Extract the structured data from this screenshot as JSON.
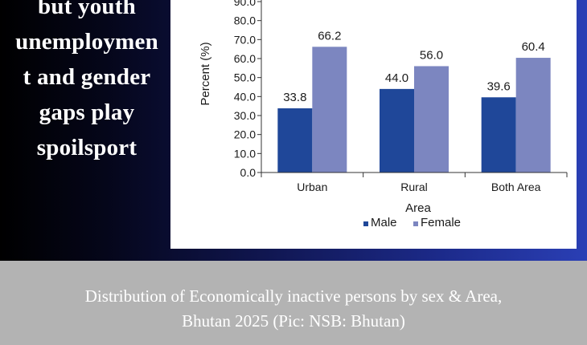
{
  "headline": {
    "lines": [
      "but youth",
      "unemploymen",
      "t and gender",
      "gaps play",
      "spoilsport"
    ]
  },
  "caption": {
    "line1": "Distribution of Economically inactive persons by sex & Area,",
    "line2": "Bhutan 2025 (Pic: NSB: Bhutan)"
  },
  "chart_data": {
    "type": "bar",
    "categories": [
      "Urban",
      "Rural",
      "Both Area"
    ],
    "series": [
      {
        "name": "Male",
        "values": [
          33.8,
          44.0,
          39.6
        ],
        "color": "#1f4799"
      },
      {
        "name": "Female",
        "values": [
          66.2,
          56.0,
          60.4
        ],
        "color": "#7c86c0"
      }
    ],
    "ylim": [
      0,
      90
    ],
    "yticks": [
      "0.0",
      "10.0",
      "20.0",
      "30.0",
      "40.0",
      "50.0",
      "60.0",
      "70.0",
      "80.0",
      "90.0"
    ],
    "value_labels": [
      [
        "33.8",
        "44.0",
        "39.6"
      ],
      [
        "66.2",
        "56.0",
        "60.4"
      ]
    ],
    "xlabel": "Area",
    "ylabel": "Percent (%)",
    "legend_position": "bottom",
    "grid": false
  }
}
